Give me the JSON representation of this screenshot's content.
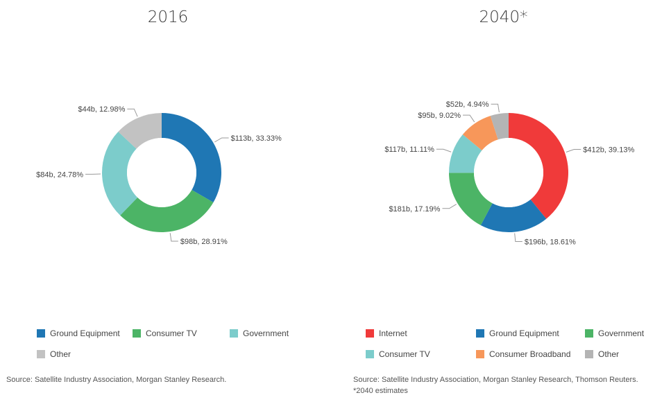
{
  "chart_data": [
    {
      "type": "pie",
      "variant": "donut",
      "title": "2016",
      "slices": [
        {
          "label": "Ground Equipment",
          "value": 113,
          "percent": 33.33,
          "data_label": "$113b, 33.33%",
          "color": "#1f77b4"
        },
        {
          "label": "Consumer TV",
          "value": 98,
          "percent": 28.91,
          "data_label": "$98b, 28.91%",
          "color": "#4cb466"
        },
        {
          "label": "Government",
          "value": 84,
          "percent": 24.78,
          "data_label": "$84b, 24.78%",
          "color": "#7ccccb"
        },
        {
          "label": "Other",
          "value": 44,
          "percent": 12.98,
          "data_label": "$44b, 12.98%",
          "color": "#c2c2c2"
        }
      ],
      "legend_position": "bottom",
      "source": "Source: Satellite Industry Association, Morgan Stanley Research."
    },
    {
      "type": "pie",
      "variant": "donut",
      "title": "2040*",
      "slices": [
        {
          "label": "Internet",
          "value": 412,
          "percent": 39.13,
          "data_label": "$412b, 39.13%",
          "color": "#f03a3a"
        },
        {
          "label": "Ground Equipment",
          "value": 196,
          "percent": 18.61,
          "data_label": "$196b, 18.61%",
          "color": "#1f77b4"
        },
        {
          "label": "Government",
          "value": 181,
          "percent": 17.19,
          "data_label": "$181b, 17.19%",
          "color": "#4cb466"
        },
        {
          "label": "Consumer TV",
          "value": 117,
          "percent": 11.11,
          "data_label": "$117b, 11.11%",
          "color": "#7ccccb"
        },
        {
          "label": "Consumer Broadband",
          "value": 95,
          "percent": 9.02,
          "data_label": "$95b, 9.02%",
          "color": "#f7975a"
        },
        {
          "label": "Other",
          "value": 52,
          "percent": 4.94,
          "data_label": "$52b, 4.94%",
          "color": "#b4b4b4"
        }
      ],
      "legend_position": "bottom",
      "source": "Source: Satellite Industry Association, Morgan Stanley Research, Thomson Reuters. *2040 estimates"
    }
  ]
}
